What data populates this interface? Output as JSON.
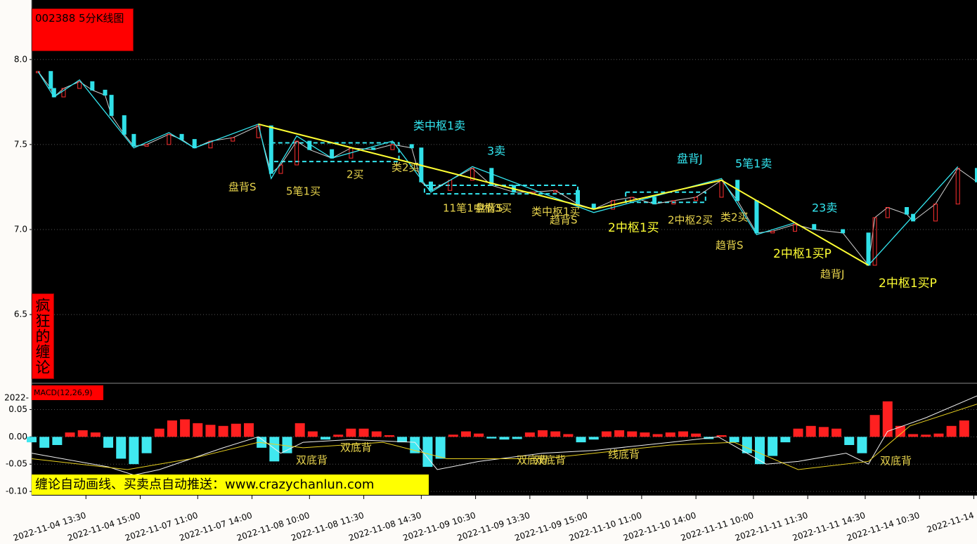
{
  "title": "002388 5分K线图",
  "side_label": "疯狂的缠论",
  "banner": "缠论自动画线、买卖点自动推送：www.crazychanlun.com",
  "chart_data": [
    {
      "type": "kline",
      "xlim": [
        0,
        296
      ],
      "ylim": [
        6.1,
        8.35
      ],
      "yticks": [
        6.5,
        {
          "value": 7,
          "label": "7.0"
        },
        7.5,
        {
          "value": 8,
          "label": "8.0"
        }
      ],
      "grid": true,
      "xticks": [
        {
          "value": 17,
          "label": "2022-11-04 13:30"
        },
        {
          "value": 34,
          "label": "2022-11-04 15:00"
        },
        {
          "value": 52,
          "label": "2022-11-07 11:00"
        },
        {
          "value": 69,
          "label": "2022-11-07 14:00"
        },
        {
          "value": 87,
          "label": "2022-11-08 10:00"
        },
        {
          "value": 104,
          "label": "2022-11-08 11:30"
        },
        {
          "value": 122,
          "label": "2022-11-08 14:30"
        },
        {
          "value": 139,
          "label": "2022-11-09 10:30"
        },
        {
          "value": 156,
          "label": "2022-11-09 13:30"
        },
        {
          "value": 174,
          "label": "2022-11-09 15:00"
        },
        {
          "value": 191,
          "label": "2022-11-10 11:00"
        },
        {
          "value": 208,
          "label": "2022-11-10 14:00"
        },
        {
          "value": 226,
          "label": "2022-11-11 10:00"
        },
        {
          "value": 243,
          "label": "2022-11-11 11:30"
        },
        {
          "value": 261,
          "label": "2022-11-11 14:30"
        },
        {
          "value": 278,
          "label": "2022-11-14 10:30"
        },
        {
          "value": 295,
          "label": "2022-11-14"
        }
      ],
      "color": "#d0d0d0",
      "up_color": "#ff3030",
      "down_color": "#30e0e8",
      "x": [
        2,
        6,
        7,
        10,
        15,
        19,
        23,
        25,
        29,
        32,
        36,
        43,
        47,
        51,
        56,
        63,
        71,
        75,
        78,
        83,
        87,
        94,
        100,
        107,
        113,
        119,
        122,
        125,
        131,
        138,
        144,
        151,
        157,
        164,
        171,
        176,
        182,
        188,
        195,
        201,
        208,
        216,
        221,
        227,
        232,
        239,
        245,
        254,
        262,
        264,
        268,
        274,
        276,
        283,
        290,
        296
      ],
      "values": [
        7.93,
        7.83,
        7.78,
        7.83,
        7.87,
        7.82,
        7.79,
        7.67,
        7.56,
        7.49,
        7.5,
        7.56,
        7.53,
        7.48,
        7.52,
        7.54,
        7.61,
        7.33,
        7.38,
        7.52,
        7.47,
        7.42,
        7.48,
        7.47,
        7.5,
        7.48,
        7.28,
        7.23,
        7.29,
        7.36,
        7.26,
        7.22,
        7.22,
        7.23,
        7.15,
        7.12,
        7.17,
        7.19,
        7.15,
        7.17,
        7.19,
        7.29,
        7.17,
        6.98,
        6.99,
        7.03,
        7.0,
        6.98,
        6.79,
        7.07,
        7.13,
        7.09,
        7.05,
        7.15,
        7.36,
        7.28
      ],
      "bi": {
        "color": "#33e6f0",
        "x": [
          2,
          7,
          15,
          32,
          43,
          51,
          71,
          75,
          83,
          94,
          113,
          125,
          138,
          176,
          216,
          227,
          239,
          262,
          290
        ],
        "values": [
          7.93,
          7.78,
          7.88,
          7.48,
          7.57,
          7.48,
          7.62,
          7.3,
          7.55,
          7.42,
          7.52,
          7.22,
          7.37,
          7.1,
          7.3,
          6.97,
          7.04,
          6.79,
          7.37
        ]
      },
      "segment": {
        "color": "#ffff33",
        "x": [
          71,
          176,
          216,
          262
        ],
        "values": [
          7.62,
          7.12,
          7.29,
          6.79
        ]
      },
      "pivots": [
        {
          "x": [
            75,
            115
          ],
          "values": [
            7.4,
            7.51
          ]
        },
        {
          "x": [
            123,
            171
          ],
          "values": [
            7.21,
            7.26
          ]
        },
        {
          "x": [
            186,
            211
          ],
          "values": [
            7.16,
            7.22
          ]
        }
      ],
      "pivot_color": "#33e6f0",
      "annotations": [
        {
          "text": "类中枢1卖",
          "color": "#33e6f0"
        },
        {
          "text": "3卖",
          "color": "#33e6f0"
        },
        {
          "text": "盘背S",
          "color": "#e8d44d"
        },
        {
          "text": "5笔1买",
          "color": "#e8d44d"
        },
        {
          "text": "2买",
          "color": "#e8d44d"
        },
        {
          "text": "类2买",
          "color": "#e8d44d"
        },
        {
          "text": "11笔1中枢3买",
          "color": "#e8d44d"
        },
        {
          "text": "盘背S",
          "color": "#e8d44d"
        },
        {
          "text": "类中枢1买",
          "color": "#e8d44d"
        },
        {
          "text": "趋背S",
          "color": "#e8d44d"
        },
        {
          "text": "2中枢1买",
          "color": "#ffff33"
        },
        {
          "text": "2中枢2买",
          "color": "#e8d44d"
        },
        {
          "text": "类2买",
          "color": "#e8d44d"
        },
        {
          "text": "盘背J",
          "color": "#33e6f0"
        },
        {
          "text": "5笔1卖",
          "color": "#33e6f0"
        },
        {
          "text": "23卖",
          "color": "#33e6f0"
        },
        {
          "text": "趋背S",
          "color": "#e8d44d"
        },
        {
          "text": "2中枢1买P",
          "color": "#ffff33"
        },
        {
          "text": "趋背J",
          "color": "#e8d44d"
        },
        {
          "text": "2中枢1买P",
          "color": "#ffff33"
        }
      ]
    },
    {
      "type": "macd",
      "title": "MACD(12,26,9)",
      "top_label": "2022-",
      "xlim": [
        0,
        296
      ],
      "ylim": [
        -0.105,
        0.075
      ],
      "yticks": [
        {
          "value": -0.1,
          "label": "-0.10"
        },
        {
          "value": -0.05,
          "label": "-0.05"
        },
        {
          "value": 0,
          "label": "0.00"
        },
        {
          "value": 0.05,
          "label": "0.05"
        }
      ],
      "grid": true,
      "up_color": "#ff2020",
      "down_color": "#40e8f0",
      "x": [
        0,
        4,
        8,
        12,
        16,
        20,
        24,
        28,
        32,
        36,
        40,
        44,
        48,
        52,
        56,
        60,
        64,
        68,
        72,
        76,
        80,
        84,
        88,
        92,
        96,
        100,
        104,
        108,
        112,
        116,
        120,
        124,
        128,
        132,
        136,
        140,
        144,
        148,
        152,
        156,
        160,
        164,
        168,
        172,
        176,
        180,
        184,
        188,
        192,
        196,
        200,
        204,
        208,
        212,
        216,
        220,
        224,
        228,
        232,
        236,
        240,
        244,
        248,
        252,
        256,
        260,
        264,
        268,
        272,
        276,
        280,
        284,
        288,
        292
      ],
      "values": [
        -0.01,
        -0.02,
        -0.015,
        0.008,
        0.012,
        0.008,
        -0.02,
        -0.04,
        -0.05,
        -0.03,
        0.015,
        0.03,
        0.032,
        0.025,
        0.022,
        0.02,
        0.024,
        0.025,
        -0.02,
        -0.045,
        -0.03,
        0.025,
        0.01,
        -0.005,
        0.004,
        0.015,
        0.015,
        0.01,
        0.003,
        -0.01,
        -0.03,
        -0.055,
        -0.04,
        0.004,
        0.01,
        0.006,
        -0.003,
        -0.005,
        -0.004,
        0.008,
        0.012,
        0.01,
        0.005,
        -0.01,
        -0.005,
        0.01,
        0.012,
        0.01,
        0.008,
        0.005,
        0.008,
        0.01,
        0.006,
        -0.004,
        0.003,
        -0.01,
        -0.03,
        -0.05,
        -0.035,
        -0.01,
        0.015,
        0.02,
        0.018,
        0.015,
        -0.015,
        -0.03,
        0.04,
        0.065,
        0.02,
        0.005,
        0.004,
        0.006,
        0.02,
        0.03
      ],
      "dif": {
        "color": "#f0f0f0",
        "x": [
          0,
          24,
          32,
          40,
          60,
          71,
          78,
          85,
          100,
          120,
          127,
          140,
          160,
          176,
          200,
          215,
          230,
          240,
          255,
          262,
          268,
          280,
          296
        ],
        "values": [
          -0.03,
          -0.055,
          -0.07,
          -0.06,
          -0.02,
          0,
          -0.03,
          -0.01,
          -0.005,
          -0.01,
          -0.06,
          -0.045,
          -0.03,
          -0.025,
          -0.01,
          0,
          -0.05,
          -0.045,
          -0.03,
          -0.05,
          0.01,
          0.035,
          0.075
        ]
      },
      "dea": {
        "color": "#e8d020",
        "x": [
          0,
          30,
          50,
          71,
          85,
          110,
          130,
          160,
          200,
          220,
          240,
          262,
          275,
          296
        ],
        "values": [
          -0.04,
          -0.06,
          -0.04,
          -0.01,
          -0.02,
          -0.01,
          -0.04,
          -0.04,
          -0.015,
          -0.01,
          -0.06,
          -0.045,
          0.02,
          0.06
        ]
      },
      "annotations": [
        {
          "text": "双底背",
          "color": "#e8d44d"
        },
        {
          "text": "双底背",
          "color": "#e8d44d"
        },
        {
          "text": "双底背",
          "color": "#e8d44d"
        },
        {
          "text": "双底背",
          "color": "#e8d44d"
        },
        {
          "text": "线底背",
          "color": "#e8d44d"
        },
        {
          "text": "双底背",
          "color": "#e8d44d"
        }
      ]
    }
  ]
}
